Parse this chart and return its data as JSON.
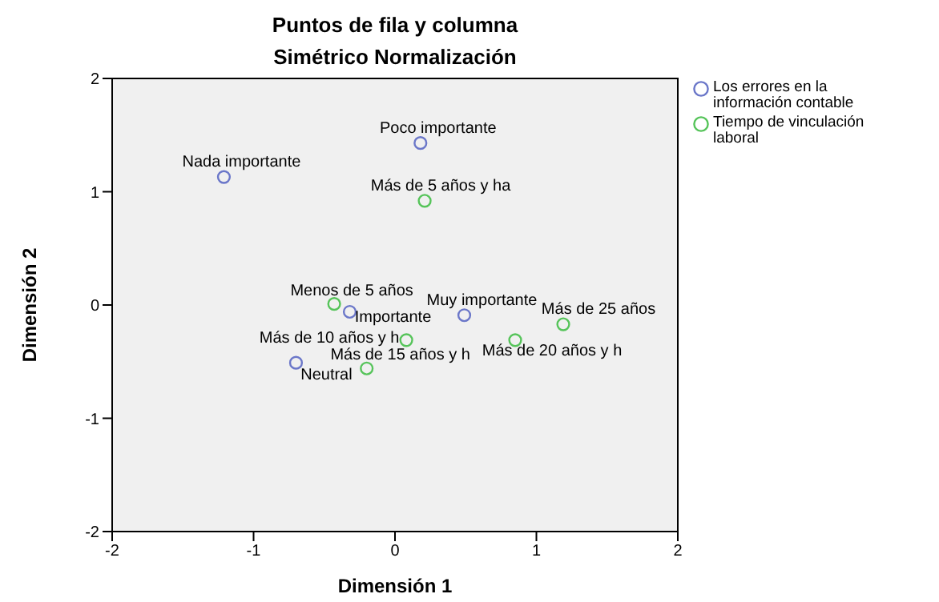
{
  "chart_data": {
    "type": "scatter",
    "title": "Puntos de fila y columna",
    "subtitle": "Simétrico Normalización",
    "xlabel": "Dimensión 1",
    "ylabel": "Dimensión 2",
    "xlim": [
      -2,
      2
    ],
    "xticks": [
      -2,
      -1,
      0,
      1,
      2
    ],
    "ylim": [
      -2,
      2
    ],
    "yticks": [
      -2,
      -1,
      0,
      1,
      2
    ],
    "legend": "right",
    "marker": "circle",
    "series": [
      {
        "name": "Los errores en la información contable",
        "color": "#6b77c9",
        "x": [
          0.18,
          -1.21,
          -0.32,
          0.49,
          -0.7
        ],
        "values": [
          1.43,
          1.13,
          -0.06,
          -0.09,
          -0.51
        ]
      },
      {
        "name": "Tiempo de vinculación laboral",
        "color": "#56c45a",
        "x": [
          0.21,
          -0.43,
          1.19,
          0.08,
          0.85,
          -0.2
        ],
        "values": [
          0.92,
          0.01,
          -0.17,
          -0.31,
          -0.31,
          -0.56
        ]
      }
    ],
    "annotations": [
      {
        "text": "Poco importante",
        "x": 0.18,
        "y": 1.43
      },
      {
        "text": "Nada importante",
        "x": -1.21,
        "y": 1.13
      },
      {
        "text": "Importante",
        "x": -0.32,
        "y": -0.06
      },
      {
        "text": "Muy importante",
        "x": 0.49,
        "y": -0.09
      },
      {
        "text": "Neutral",
        "x": -0.7,
        "y": -0.51
      },
      {
        "text": "Más de 5 años y ha",
        "x": 0.21,
        "y": 0.92
      },
      {
        "text": "Menos de 5 años",
        "x": -0.43,
        "y": 0.01
      },
      {
        "text": "Más de 25 años",
        "x": 1.19,
        "y": -0.17
      },
      {
        "text": "Más de 10 años y h",
        "x": 0.08,
        "y": -0.31
      },
      {
        "text": "Más de 20 años y h",
        "x": 0.85,
        "y": -0.31
      },
      {
        "text": "Más de 15 años y h",
        "x": -0.2,
        "y": -0.56
      }
    ]
  }
}
